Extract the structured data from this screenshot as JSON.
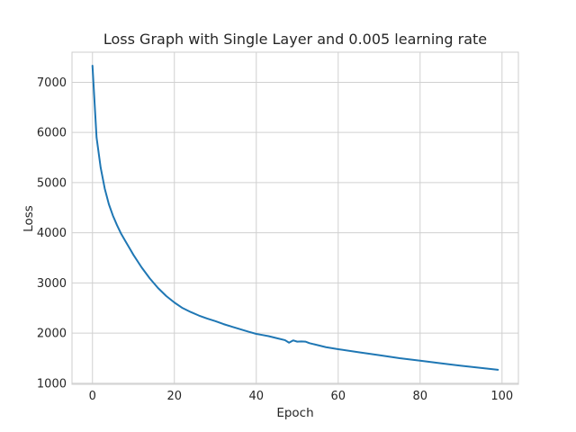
{
  "chart_data": {
    "type": "line",
    "title": "Loss Graph with Single Layer and 0.005 learning rate",
    "xlabel": "Epoch",
    "ylabel": "Loss",
    "xlim": [
      -5,
      104
    ],
    "ylim": [
      980,
      7600
    ],
    "xticks": [
      0,
      20,
      40,
      60,
      80,
      100
    ],
    "yticks": [
      1000,
      2000,
      3000,
      4000,
      5000,
      6000,
      7000
    ],
    "grid": true,
    "color": "#1f77b4",
    "series": [
      {
        "x": [
          0,
          1,
          2,
          3,
          4,
          5,
          6,
          7,
          8,
          9,
          10,
          12,
          14,
          16,
          18,
          20,
          22,
          24,
          26,
          28,
          30,
          32,
          34,
          36,
          38,
          40,
          41,
          43,
          45,
          47,
          48,
          49,
          50,
          51,
          52,
          53,
          55,
          57,
          60,
          65,
          70,
          75,
          80,
          85,
          90,
          95,
          99
        ],
        "y": [
          7330,
          5900,
          5300,
          4880,
          4570,
          4340,
          4150,
          3980,
          3840,
          3700,
          3560,
          3310,
          3090,
          2900,
          2740,
          2610,
          2500,
          2420,
          2350,
          2290,
          2240,
          2180,
          2130,
          2080,
          2030,
          1985,
          1970,
          1940,
          1900,
          1860,
          1810,
          1855,
          1830,
          1835,
          1830,
          1800,
          1760,
          1720,
          1680,
          1620,
          1560,
          1500,
          1450,
          1400,
          1350,
          1305,
          1270
        ]
      }
    ]
  }
}
